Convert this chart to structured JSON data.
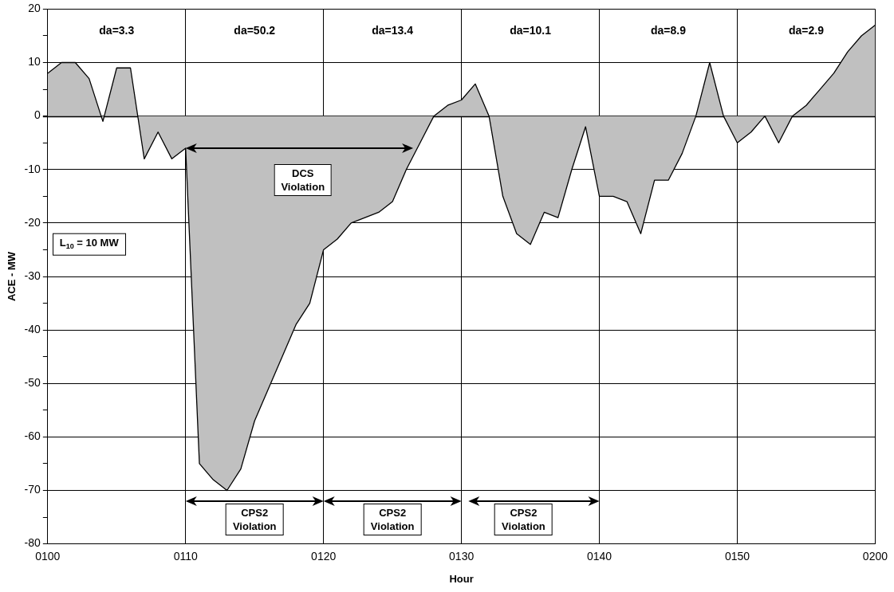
{
  "chart_data": {
    "type": "area",
    "xlabel": "Hour",
    "ylabel": "ACE - MW",
    "categories": [
      "0100",
      null,
      null,
      null,
      null,
      null,
      null,
      null,
      null,
      null,
      "0110",
      null,
      null,
      null,
      null,
      null,
      null,
      null,
      null,
      null,
      "0120",
      null,
      null,
      null,
      null,
      null,
      null,
      null,
      null,
      null,
      "0130",
      null,
      null,
      null,
      null,
      null,
      null,
      null,
      null,
      null,
      "0140",
      null,
      null,
      null,
      null,
      null,
      null,
      null,
      null,
      null,
      "0150",
      null,
      null,
      null,
      null,
      null,
      null,
      null,
      null,
      null,
      "0200"
    ],
    "series": [
      {
        "color": "#c0c0c0",
        "values": [
          8,
          10,
          10,
          7,
          -1,
          9,
          9,
          -8,
          -3,
          -8,
          -6,
          -65,
          -68,
          -70,
          -66,
          -57,
          -51,
          -45,
          -39,
          -35,
          -25,
          -23,
          -20,
          -19,
          -18,
          -16,
          -10,
          -5,
          0,
          2,
          3,
          6,
          0,
          -15,
          -22,
          -24,
          -18,
          -19,
          -10,
          -2,
          -15,
          -15,
          -16,
          -22,
          -12,
          -12,
          -7,
          0,
          10,
          0,
          -5,
          -3,
          0,
          -5,
          0,
          2,
          5,
          8,
          12,
          15,
          17
        ]
      }
    ],
    "ylim": [
      -80,
      20
    ],
    "yticks": [
      20,
      {
        "value": 15,
        "label": null
      },
      10,
      {
        "value": 5,
        "label": null
      },
      0,
      {
        "value": -5,
        "label": null
      },
      -10,
      {
        "value": -15,
        "label": null
      },
      -20,
      {
        "value": -25,
        "label": null
      },
      -30,
      {
        "value": -35,
        "label": null
      },
      -40,
      {
        "value": -45,
        "label": null
      },
      -50,
      {
        "value": -55,
        "label": null
      },
      -60,
      {
        "value": -65,
        "label": null
      },
      -70,
      {
        "value": -75,
        "label": null
      },
      -80
    ],
    "grid": true,
    "marker": "none",
    "annotations": [
      "da=3.3",
      "da=50.2",
      "da=13.4",
      "da=10.1",
      "da=8.9",
      "da=2.9",
      "DCS Violation",
      "CPS2 Violation",
      "CPS2 Violation",
      "CPS2 Violation",
      "L$_{10}$ = 10 MW"
    ]
  }
}
